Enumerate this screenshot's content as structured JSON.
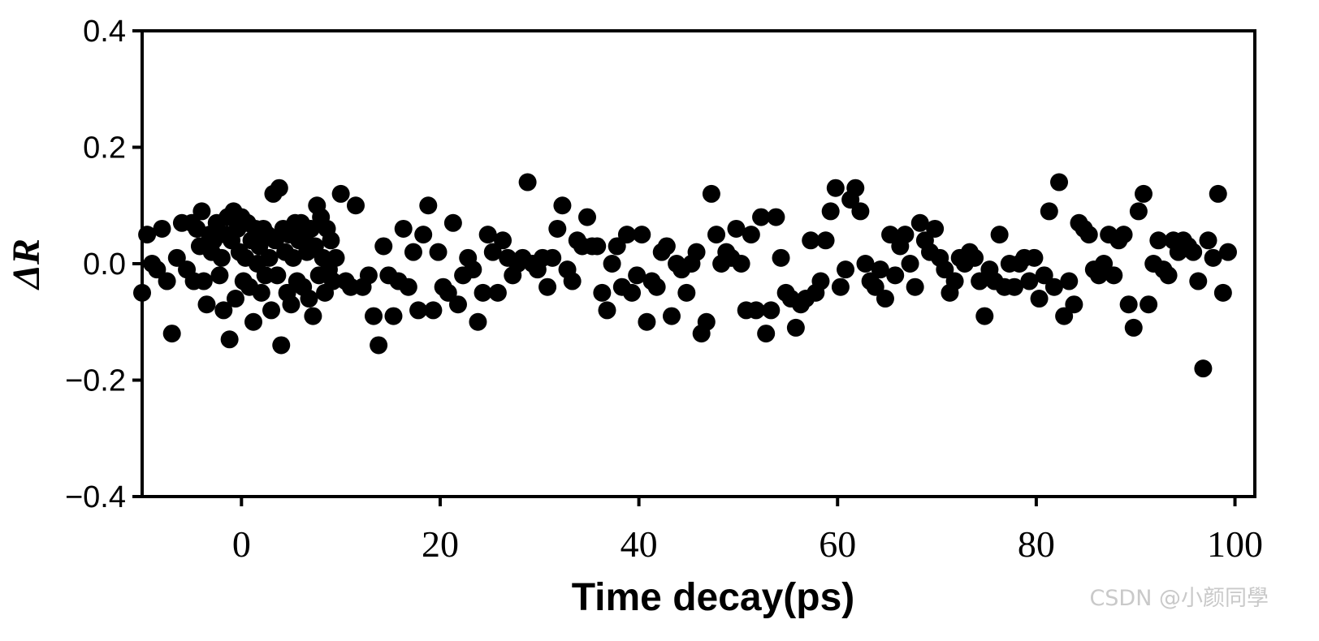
{
  "watermark": "CSDN @小颜同學",
  "chart_data": {
    "type": "scatter",
    "title": "",
    "xlabel": "Time decay(ps)",
    "ylabel": "ΔR",
    "xlim": [
      -10,
      102
    ],
    "ylim": [
      -0.4,
      0.4
    ],
    "xticks": [
      0,
      20,
      40,
      60,
      80,
      100
    ],
    "xtick_labels": [
      "0",
      "20",
      "40",
      "60",
      "80",
      "100"
    ],
    "yticks": [
      0.4,
      0.2,
      0.0,
      -0.2,
      -0.4
    ],
    "ytick_labels": [
      "0.4",
      "0.2",
      "0.0",
      "−0.2",
      "−0.4"
    ],
    "grid": false,
    "legend": false,
    "marker_color": "#000000",
    "series": [
      {
        "points": [
          [
            -10.0,
            -0.05
          ],
          [
            -9.5,
            0.05
          ],
          [
            -9.0,
            0.0
          ],
          [
            -8.5,
            -0.01
          ],
          [
            -8.0,
            0.06
          ],
          [
            -7.5,
            -0.03
          ],
          [
            -7.0,
            -0.12
          ],
          [
            -6.5,
            0.01
          ],
          [
            -6.0,
            0.07
          ],
          [
            -5.5,
            -0.01
          ],
          [
            -5.0,
            0.07
          ],
          [
            -4.8,
            -0.03
          ],
          [
            -4.5,
            0.06
          ],
          [
            -4.2,
            0.03
          ],
          [
            -4.0,
            0.09
          ],
          [
            -3.8,
            -0.03
          ],
          [
            -3.5,
            -0.07
          ],
          [
            -3.2,
            0.05
          ],
          [
            -3.0,
            0.02
          ],
          [
            -2.8,
            0.04
          ],
          [
            -2.5,
            0.07
          ],
          [
            -2.2,
            -0.02
          ],
          [
            -2.0,
            0.01
          ],
          [
            -1.8,
            -0.08
          ],
          [
            -1.6,
            0.05
          ],
          [
            -1.4,
            0.08
          ],
          [
            -1.2,
            -0.13
          ],
          [
            -1.0,
            0.04
          ],
          [
            -0.8,
            0.09
          ],
          [
            -0.6,
            -0.06
          ],
          [
            -0.4,
            0.06
          ],
          [
            -0.2,
            0.02
          ],
          [
            0.0,
            0.08
          ],
          [
            0.2,
            -0.03
          ],
          [
            0.4,
            0.01
          ],
          [
            0.6,
            0.07
          ],
          [
            0.8,
            -0.04
          ],
          [
            1.0,
            0.04
          ],
          [
            1.2,
            -0.1
          ],
          [
            1.4,
            0.06
          ],
          [
            1.6,
            0.0
          ],
          [
            1.8,
            0.03
          ],
          [
            2.0,
            -0.05
          ],
          [
            2.2,
            0.06
          ],
          [
            2.4,
            -0.02
          ],
          [
            2.6,
            0.05
          ],
          [
            2.8,
            0.01
          ],
          [
            3.0,
            -0.08
          ],
          [
            3.2,
            0.12
          ],
          [
            3.4,
            0.04
          ],
          [
            3.6,
            -0.02
          ],
          [
            3.8,
            0.13
          ],
          [
            4.0,
            -0.14
          ],
          [
            4.2,
            0.06
          ],
          [
            4.4,
            0.02
          ],
          [
            4.6,
            -0.05
          ],
          [
            4.8,
            0.05
          ],
          [
            5.0,
            -0.07
          ],
          [
            5.2,
            0.01
          ],
          [
            5.4,
            0.07
          ],
          [
            5.6,
            -0.03
          ],
          [
            5.8,
            0.04
          ],
          [
            6.0,
            0.07
          ],
          [
            6.2,
            -0.04
          ],
          [
            6.4,
            0.05
          ],
          [
            6.6,
            0.02
          ],
          [
            6.8,
            -0.06
          ],
          [
            7.0,
            0.06
          ],
          [
            7.2,
            -0.09
          ],
          [
            7.4,
            0.03
          ],
          [
            7.6,
            0.1
          ],
          [
            7.8,
            -0.02
          ],
          [
            8.0,
            0.08
          ],
          [
            8.2,
            0.01
          ],
          [
            8.4,
            -0.05
          ],
          [
            8.6,
            0.06
          ],
          [
            8.8,
            -0.01
          ],
          [
            9.0,
            0.04
          ],
          [
            9.2,
            -0.03
          ],
          [
            9.5,
            0.01
          ],
          [
            10.0,
            0.12
          ],
          [
            10.5,
            -0.03
          ],
          [
            11.0,
            -0.04
          ],
          [
            11.5,
            0.1
          ],
          [
            12.2,
            -0.04
          ],
          [
            12.8,
            -0.02
          ],
          [
            13.3,
            -0.09
          ],
          [
            13.8,
            -0.14
          ],
          [
            14.3,
            0.03
          ],
          [
            14.8,
            -0.02
          ],
          [
            15.3,
            -0.09
          ],
          [
            15.8,
            -0.03
          ],
          [
            16.3,
            0.06
          ],
          [
            16.8,
            -0.04
          ],
          [
            17.3,
            0.02
          ],
          [
            17.8,
            -0.08
          ],
          [
            18.3,
            0.05
          ],
          [
            18.8,
            0.1
          ],
          [
            19.3,
            -0.08
          ],
          [
            19.8,
            0.02
          ],
          [
            20.3,
            -0.04
          ],
          [
            20.8,
            -0.05
          ],
          [
            21.3,
            0.07
          ],
          [
            21.8,
            -0.07
          ],
          [
            22.3,
            -0.02
          ],
          [
            22.8,
            0.01
          ],
          [
            23.3,
            -0.01
          ],
          [
            23.8,
            -0.1
          ],
          [
            24.3,
            -0.05
          ],
          [
            24.8,
            0.05
          ],
          [
            25.3,
            0.02
          ],
          [
            25.8,
            -0.05
          ],
          [
            26.3,
            0.04
          ],
          [
            26.8,
            0.01
          ],
          [
            27.3,
            -0.02
          ],
          [
            27.8,
            0.0
          ],
          [
            28.3,
            0.01
          ],
          [
            28.8,
            0.14
          ],
          [
            29.3,
            0.0
          ],
          [
            29.8,
            -0.01
          ],
          [
            30.3,
            0.01
          ],
          [
            30.8,
            -0.04
          ],
          [
            31.3,
            0.01
          ],
          [
            31.8,
            0.06
          ],
          [
            32.3,
            0.1
          ],
          [
            32.8,
            -0.01
          ],
          [
            33.3,
            -0.03
          ],
          [
            33.8,
            0.04
          ],
          [
            34.3,
            0.03
          ],
          [
            34.8,
            0.08
          ],
          [
            35.3,
            0.03
          ],
          [
            35.8,
            0.03
          ],
          [
            36.3,
            -0.05
          ],
          [
            36.8,
            -0.08
          ],
          [
            37.3,
            0.0
          ],
          [
            37.8,
            0.03
          ],
          [
            38.3,
            -0.04
          ],
          [
            38.8,
            0.05
          ],
          [
            39.3,
            -0.05
          ],
          [
            39.8,
            -0.02
          ],
          [
            40.3,
            0.05
          ],
          [
            40.8,
            -0.1
          ],
          [
            41.3,
            -0.03
          ],
          [
            41.8,
            -0.04
          ],
          [
            42.3,
            0.02
          ],
          [
            42.8,
            0.03
          ],
          [
            43.3,
            -0.09
          ],
          [
            43.8,
            0.0
          ],
          [
            44.3,
            -0.01
          ],
          [
            44.8,
            -0.05
          ],
          [
            45.3,
            0.0
          ],
          [
            45.8,
            0.02
          ],
          [
            46.3,
            -0.12
          ],
          [
            46.8,
            -0.1
          ],
          [
            47.3,
            0.12
          ],
          [
            47.8,
            0.05
          ],
          [
            48.3,
            0.0
          ],
          [
            48.8,
            0.02
          ],
          [
            49.3,
            0.01
          ],
          [
            49.8,
            0.06
          ],
          [
            50.3,
            0.0
          ],
          [
            50.8,
            -0.08
          ],
          [
            51.3,
            0.05
          ],
          [
            51.8,
            -0.08
          ],
          [
            52.3,
            0.08
          ],
          [
            52.8,
            -0.12
          ],
          [
            53.3,
            -0.08
          ],
          [
            53.8,
            0.08
          ],
          [
            54.3,
            0.01
          ],
          [
            54.8,
            -0.05
          ],
          [
            55.3,
            -0.06
          ],
          [
            55.8,
            -0.11
          ],
          [
            56.3,
            -0.07
          ],
          [
            56.8,
            -0.06
          ],
          [
            57.3,
            0.04
          ],
          [
            57.8,
            -0.05
          ],
          [
            58.3,
            -0.03
          ],
          [
            58.8,
            0.04
          ],
          [
            59.3,
            0.09
          ],
          [
            59.8,
            0.13
          ],
          [
            60.3,
            -0.04
          ],
          [
            60.8,
            -0.01
          ],
          [
            61.3,
            0.11
          ],
          [
            61.8,
            0.13
          ],
          [
            62.3,
            0.09
          ],
          [
            62.8,
            0.0
          ],
          [
            63.3,
            -0.03
          ],
          [
            63.8,
            -0.04
          ],
          [
            64.3,
            -0.01
          ],
          [
            64.8,
            -0.06
          ],
          [
            65.3,
            0.05
          ],
          [
            65.8,
            -0.02
          ],
          [
            66.3,
            0.03
          ],
          [
            66.8,
            0.05
          ],
          [
            67.3,
            0.0
          ],
          [
            67.8,
            -0.04
          ],
          [
            68.3,
            0.07
          ],
          [
            68.8,
            0.04
          ],
          [
            69.3,
            0.02
          ],
          [
            69.8,
            0.06
          ],
          [
            70.3,
            0.01
          ],
          [
            70.8,
            -0.01
          ],
          [
            71.3,
            -0.05
          ],
          [
            71.8,
            -0.03
          ],
          [
            72.3,
            0.01
          ],
          [
            72.8,
            0.0
          ],
          [
            73.3,
            0.02
          ],
          [
            73.8,
            0.01
          ],
          [
            74.3,
            -0.03
          ],
          [
            74.8,
            -0.09
          ],
          [
            75.3,
            -0.01
          ],
          [
            75.8,
            -0.03
          ],
          [
            76.3,
            0.05
          ],
          [
            76.8,
            -0.04
          ],
          [
            77.3,
            0.0
          ],
          [
            77.8,
            -0.04
          ],
          [
            78.3,
            0.0
          ],
          [
            78.8,
            0.01
          ],
          [
            79.3,
            -0.03
          ],
          [
            79.8,
            0.01
          ],
          [
            80.3,
            -0.06
          ],
          [
            80.8,
            -0.02
          ],
          [
            81.3,
            0.09
          ],
          [
            81.8,
            -0.04
          ],
          [
            82.3,
            0.14
          ],
          [
            82.8,
            -0.09
          ],
          [
            83.3,
            -0.03
          ],
          [
            83.8,
            -0.07
          ],
          [
            84.3,
            0.07
          ],
          [
            84.8,
            0.06
          ],
          [
            85.3,
            0.05
          ],
          [
            85.8,
            -0.01
          ],
          [
            86.3,
            -0.02
          ],
          [
            86.8,
            0.0
          ],
          [
            87.3,
            0.05
          ],
          [
            87.8,
            -0.02
          ],
          [
            88.3,
            0.04
          ],
          [
            88.8,
            0.05
          ],
          [
            89.3,
            -0.07
          ],
          [
            89.8,
            -0.11
          ],
          [
            90.3,
            0.09
          ],
          [
            90.8,
            0.12
          ],
          [
            91.3,
            -0.07
          ],
          [
            91.8,
            0.0
          ],
          [
            92.3,
            0.04
          ],
          [
            92.8,
            -0.01
          ],
          [
            93.3,
            -0.02
          ],
          [
            93.8,
            0.04
          ],
          [
            94.3,
            0.02
          ],
          [
            94.8,
            0.04
          ],
          [
            95.3,
            0.03
          ],
          [
            95.8,
            0.02
          ],
          [
            96.3,
            -0.03
          ],
          [
            96.8,
            -0.18
          ],
          [
            97.3,
            0.04
          ],
          [
            97.8,
            0.01
          ],
          [
            98.3,
            0.12
          ],
          [
            98.8,
            -0.05
          ],
          [
            99.3,
            0.02
          ]
        ]
      }
    ]
  }
}
